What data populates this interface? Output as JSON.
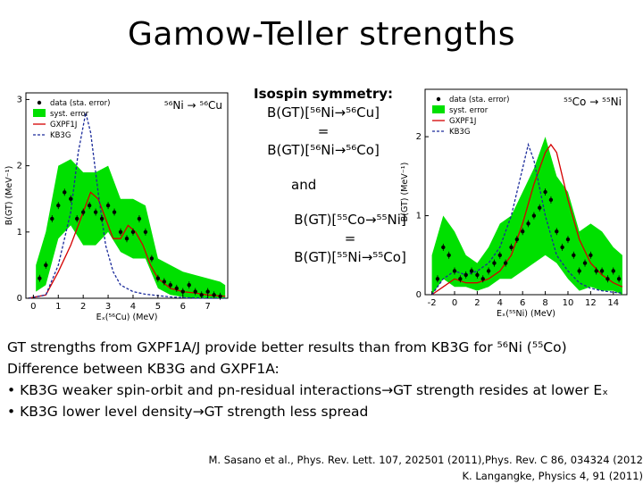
{
  "title": "Gamow-Teller strengths",
  "isospin": {
    "heading": "Isospin symmetry:",
    "line1": "B(GT)[⁵⁶Ni→⁵⁶Cu]",
    "eq1": "=",
    "line2": "B(GT)[⁵⁶Ni→⁵⁶Co]",
    "and": "and",
    "line3": "B(GT)[⁵⁵Co→⁵⁵Ni]",
    "eq2": "=",
    "line4": "B(GT)[⁵⁵Ni→⁵⁵Co]"
  },
  "text_lines": [
    "GT strengths from GXPF1A/J provide better results than from KB3G for ⁵⁶Ni (⁵⁵Co)",
    "Difference between KB3G and GXPF1A:",
    "• KB3G weaker spin-orbit and pn-residual interactions→GT strength resides at lower Eₓ",
    "• KB3G lower level density→GT strength less spread"
  ],
  "references": [
    "M. Sasano et al., Phys. Rev. Lett. 107, 202501 (2011),Phys. Rev. C 86, 034324 (2012",
    "K. Langangke, Physics 4, 91 (2011)"
  ],
  "colors": {
    "data": "#000000",
    "syst": "#00e000",
    "gxpf1j": "#d40000",
    "kb3g": "#1a2a9a"
  },
  "chart_data": [
    {
      "type": "line",
      "reaction": "⁵⁶Ni → ⁵⁶Cu",
      "xlabel": "Eₓ(⁵⁶Cu) (MeV)",
      "ylabel": "B(GT) (MeV⁻¹)",
      "xlim": [
        -0.3,
        7.8
      ],
      "ylim": [
        0,
        3.1
      ],
      "xticks": [
        0,
        1,
        2,
        3,
        4,
        5,
        6,
        7
      ],
      "yticks": [
        0,
        1,
        2,
        3
      ],
      "legend": [
        "data (sta. error)",
        "syst. error",
        "GXPF1J",
        "KB3G"
      ],
      "legend_position": "top-left",
      "series": [
        {
          "name": "data (sta. error)",
          "kind": "points",
          "x": [
            0.25,
            0.5,
            0.75,
            1.0,
            1.25,
            1.5,
            1.75,
            2.0,
            2.25,
            2.5,
            2.75,
            3.0,
            3.25,
            3.5,
            3.75,
            4.0,
            4.25,
            4.5,
            4.75,
            5.0,
            5.25,
            5.5,
            5.75,
            6.0,
            6.25,
            6.5,
            6.75,
            7.0,
            7.25,
            7.5
          ],
          "y": [
            0.3,
            0.5,
            1.2,
            1.4,
            1.6,
            1.5,
            1.2,
            1.3,
            1.4,
            1.3,
            1.2,
            1.4,
            1.3,
            1.0,
            0.9,
            1.0,
            1.2,
            1.0,
            0.6,
            0.3,
            0.25,
            0.2,
            0.15,
            0.1,
            0.2,
            0.1,
            0.05,
            0.1,
            0.05,
            0.03
          ]
        },
        {
          "name": "syst. error",
          "kind": "band",
          "x": [
            0.1,
            0.5,
            1.0,
            1.5,
            2.0,
            2.5,
            3.0,
            3.5,
            4.0,
            4.5,
            5.0,
            5.5,
            6.0,
            6.5,
            7.0,
            7.5,
            7.7
          ],
          "low": [
            0.1,
            0.2,
            0.9,
            1.1,
            0.8,
            0.8,
            1.0,
            0.7,
            0.6,
            0.6,
            0.15,
            0.05,
            0.02,
            0.0,
            0.0,
            0.0,
            0.0
          ],
          "high": [
            0.5,
            1.0,
            2.0,
            2.1,
            1.9,
            1.9,
            2.0,
            1.5,
            1.5,
            1.4,
            0.6,
            0.5,
            0.4,
            0.35,
            0.3,
            0.25,
            0.2
          ]
        },
        {
          "name": "GXPF1J",
          "kind": "line",
          "x": [
            -0.2,
            0.5,
            1.0,
            1.5,
            2.0,
            2.3,
            2.6,
            2.9,
            3.2,
            3.5,
            3.8,
            4.1,
            4.4,
            4.7,
            5.0,
            5.5,
            6.0,
            6.5,
            7.0,
            7.7
          ],
          "y": [
            0.0,
            0.05,
            0.4,
            0.8,
            1.3,
            1.6,
            1.5,
            1.2,
            0.9,
            0.9,
            1.1,
            1.0,
            0.8,
            0.5,
            0.3,
            0.15,
            0.1,
            0.08,
            0.05,
            0.03
          ]
        },
        {
          "name": "KB3G",
          "kind": "line",
          "x": [
            -0.2,
            0.5,
            1.0,
            1.5,
            1.8,
            2.1,
            2.3,
            2.6,
            2.9,
            3.2,
            3.5,
            4.0,
            4.5,
            5.0,
            5.5,
            6.0,
            7.0,
            7.7
          ],
          "y": [
            0.0,
            0.05,
            0.5,
            1.3,
            2.2,
            2.8,
            2.5,
            1.6,
            0.8,
            0.4,
            0.2,
            0.1,
            0.06,
            0.04,
            0.02,
            0.01,
            0.0,
            0.0
          ]
        }
      ]
    },
    {
      "type": "line",
      "reaction": "⁵⁵Co → ⁵⁵Ni",
      "xlabel": "Eₓ(⁵⁵Ni) (MeV)",
      "ylabel": "B(GT) (MeV⁻¹)",
      "xlim": [
        -2.6,
        15.2
      ],
      "ylim": [
        0,
        2.6
      ],
      "xticks": [
        -2,
        0,
        2,
        4,
        6,
        8,
        10,
        12,
        14
      ],
      "yticks": [
        0,
        1,
        2
      ],
      "legend": [
        "data (sta. error)",
        "syst. error",
        "GXPF1J",
        "KB3G"
      ],
      "legend_position": "top-left",
      "series": [
        {
          "name": "data (sta. error)",
          "kind": "points",
          "x": [
            -1.5,
            -1.0,
            -0.5,
            0.0,
            0.5,
            1.0,
            1.5,
            2.0,
            2.5,
            3.0,
            3.5,
            4.0,
            4.5,
            5.0,
            5.5,
            6.0,
            6.5,
            7.0,
            7.5,
            8.0,
            8.5,
            9.0,
            9.5,
            10.0,
            10.5,
            11.0,
            11.5,
            12.0,
            12.5,
            13.0,
            13.5,
            14.0,
            14.5
          ],
          "y": [
            0.2,
            0.6,
            0.5,
            0.3,
            0.2,
            0.25,
            0.3,
            0.25,
            0.2,
            0.3,
            0.4,
            0.5,
            0.4,
            0.6,
            0.7,
            0.8,
            0.9,
            1.0,
            1.1,
            1.3,
            1.2,
            0.8,
            0.6,
            0.7,
            0.5,
            0.3,
            0.4,
            0.5,
            0.3,
            0.3,
            0.2,
            0.3,
            0.2
          ]
        },
        {
          "name": "syst. error",
          "kind": "band",
          "x": [
            -2.0,
            -1.0,
            0.0,
            1.0,
            2.0,
            3.0,
            4.0,
            5.0,
            6.0,
            7.0,
            8.0,
            9.0,
            10.0,
            11.0,
            12.0,
            13.0,
            14.0,
            14.8
          ],
          "low": [
            0.0,
            0.2,
            0.1,
            0.1,
            0.05,
            0.1,
            0.2,
            0.2,
            0.3,
            0.4,
            0.5,
            0.4,
            0.2,
            0.05,
            0.1,
            0.05,
            0.05,
            0.0
          ],
          "high": [
            0.5,
            1.0,
            0.8,
            0.5,
            0.4,
            0.6,
            0.9,
            1.0,
            1.3,
            1.6,
            2.0,
            1.5,
            1.3,
            0.8,
            0.9,
            0.8,
            0.6,
            0.5
          ]
        },
        {
          "name": "GXPF1J",
          "kind": "line",
          "x": [
            -2.0,
            -1.0,
            0.0,
            1.0,
            2.0,
            3.0,
            4.0,
            5.0,
            6.0,
            7.0,
            8.0,
            8.5,
            9.0,
            10.0,
            11.0,
            12.0,
            13.0,
            14.0,
            14.8
          ],
          "y": [
            0.0,
            0.1,
            0.2,
            0.15,
            0.15,
            0.2,
            0.3,
            0.5,
            0.9,
            1.4,
            1.8,
            1.9,
            1.8,
            1.2,
            0.7,
            0.4,
            0.25,
            0.15,
            0.1
          ]
        },
        {
          "name": "KB3G",
          "kind": "line",
          "x": [
            -2.0,
            -1.0,
            0.0,
            1.0,
            2.0,
            3.0,
            4.0,
            5.0,
            6.0,
            6.5,
            7.0,
            8.0,
            9.0,
            10.0,
            11.0,
            12.0,
            13.0,
            14.0,
            14.8
          ],
          "y": [
            0.0,
            0.2,
            0.3,
            0.25,
            0.3,
            0.4,
            0.6,
            1.0,
            1.6,
            1.9,
            1.7,
            1.0,
            0.5,
            0.3,
            0.15,
            0.08,
            0.05,
            0.03,
            0.02
          ]
        }
      ]
    }
  ]
}
